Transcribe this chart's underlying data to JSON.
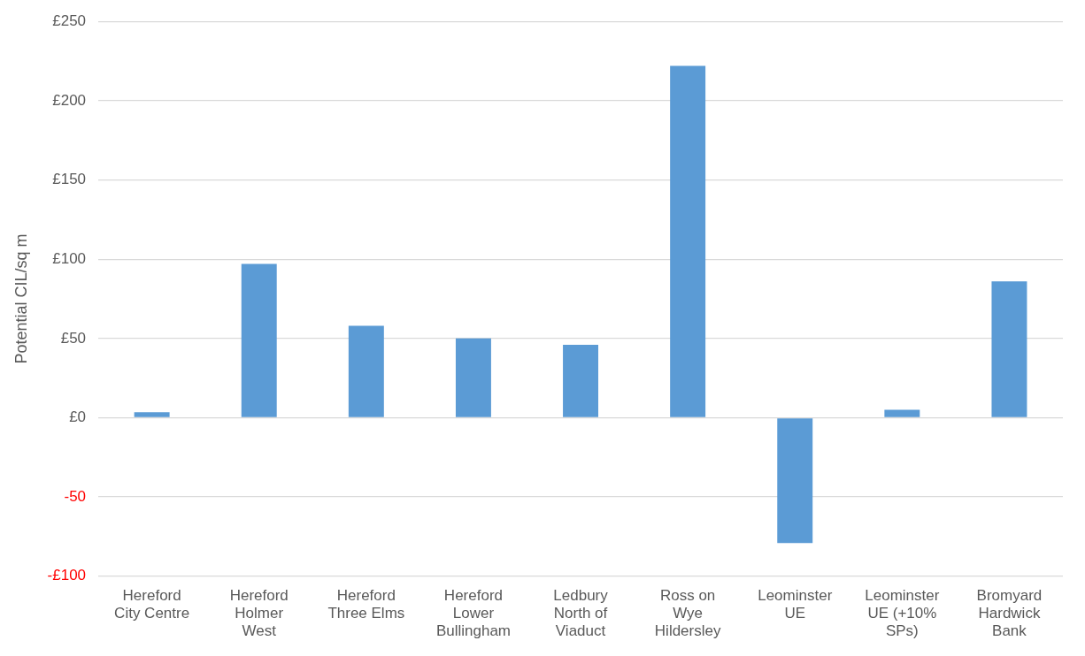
{
  "chart_data": {
    "type": "bar",
    "ylabel": "Potential CIL/sq m",
    "categories": [
      "Hereford City Centre",
      "Hereford Holmer West",
      "Hereford Three Elms",
      "Hereford Lower Bullingham",
      "Ledbury North of Viaduct",
      "Ross on Wye Hildersley",
      "Leominster UE",
      "Leominster UE (+10% SPs)",
      "Bromyard Hardwick Bank"
    ],
    "values": [
      3.5,
      97,
      58,
      50,
      46,
      222,
      -79,
      5,
      86
    ],
    "color": "#5b9bd5",
    "ylim": [
      -100,
      250
    ],
    "yticks": [
      {
        "value": -100,
        "label": "-£100"
      },
      {
        "value": -50,
        "label": "-50"
      },
      {
        "value": 0,
        "label": "£0"
      },
      {
        "value": 50,
        "label": "£50"
      },
      {
        "value": 100,
        "label": "£100"
      },
      {
        "value": 150,
        "label": "£150"
      },
      {
        "value": 200,
        "label": "£200"
      },
      {
        "value": 250,
        "label": "£250"
      }
    ],
    "grid": "y",
    "legend": false
  }
}
